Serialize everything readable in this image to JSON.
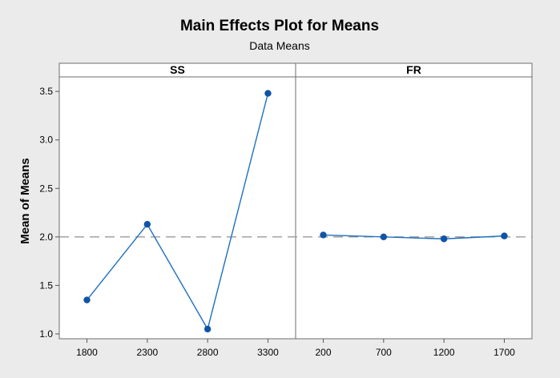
{
  "chart_data": {
    "type": "line",
    "title": "Main Effects Plot for Means",
    "subtitle": "Data Means",
    "ylabel": "Mean of Means",
    "ylim": [
      0.95,
      3.65
    ],
    "yticks": [
      1.0,
      1.5,
      2.0,
      2.5,
      3.0,
      3.5
    ],
    "ytick_labels": [
      "1.0",
      "1.5",
      "2.0",
      "2.5",
      "3.0",
      "3.5"
    ],
    "reference_line": 2.0,
    "grid": false,
    "colors": {
      "line": "#1f6fbf",
      "marker": "#1054a6",
      "reference": "#9a9a9a"
    },
    "panels": [
      {
        "name": "SS",
        "x": [
          1800,
          2300,
          2800,
          3300
        ],
        "tick_labels": [
          "1800",
          "2300",
          "2800",
          "3300"
        ],
        "values": [
          1.35,
          2.13,
          1.05,
          3.48
        ]
      },
      {
        "name": "FR",
        "x": [
          200,
          700,
          1200,
          1700
        ],
        "tick_labels": [
          "200",
          "700",
          "1200",
          "1700"
        ],
        "values": [
          2.02,
          2.0,
          1.98,
          2.01
        ]
      }
    ]
  }
}
